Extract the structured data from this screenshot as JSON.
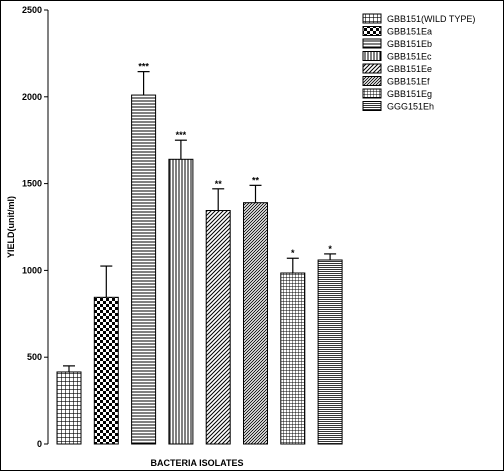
{
  "chart_data": {
    "type": "bar",
    "xlabel": "BACTERIA ISOLATES",
    "ylabel": "YIELD(unit/ml)",
    "ylim": [
      0,
      2500
    ],
    "yticks": [
      0,
      500,
      1000,
      1500,
      2000,
      2500
    ],
    "grid": false,
    "legend_position": "top-right",
    "categories": [
      "GBB151(WILD TYPE)",
      "GBB151Ea",
      "GBB151Eb",
      "GBB151Ec",
      "GBB151Ee",
      "GBB151Ef",
      "GBB151Eg",
      "GGG151Eh"
    ],
    "values": [
      415,
      845,
      2010,
      1640,
      1345,
      1390,
      985,
      1060
    ],
    "errors": [
      35,
      180,
      135,
      110,
      125,
      100,
      85,
      35
    ],
    "significance": [
      "",
      "",
      "***",
      "***",
      "**",
      "**",
      "*",
      "*"
    ],
    "patterns": [
      "grid",
      "check",
      "hlines",
      "vlines",
      "diag",
      "dense-diag",
      "grid-fine",
      "hdense"
    ]
  }
}
